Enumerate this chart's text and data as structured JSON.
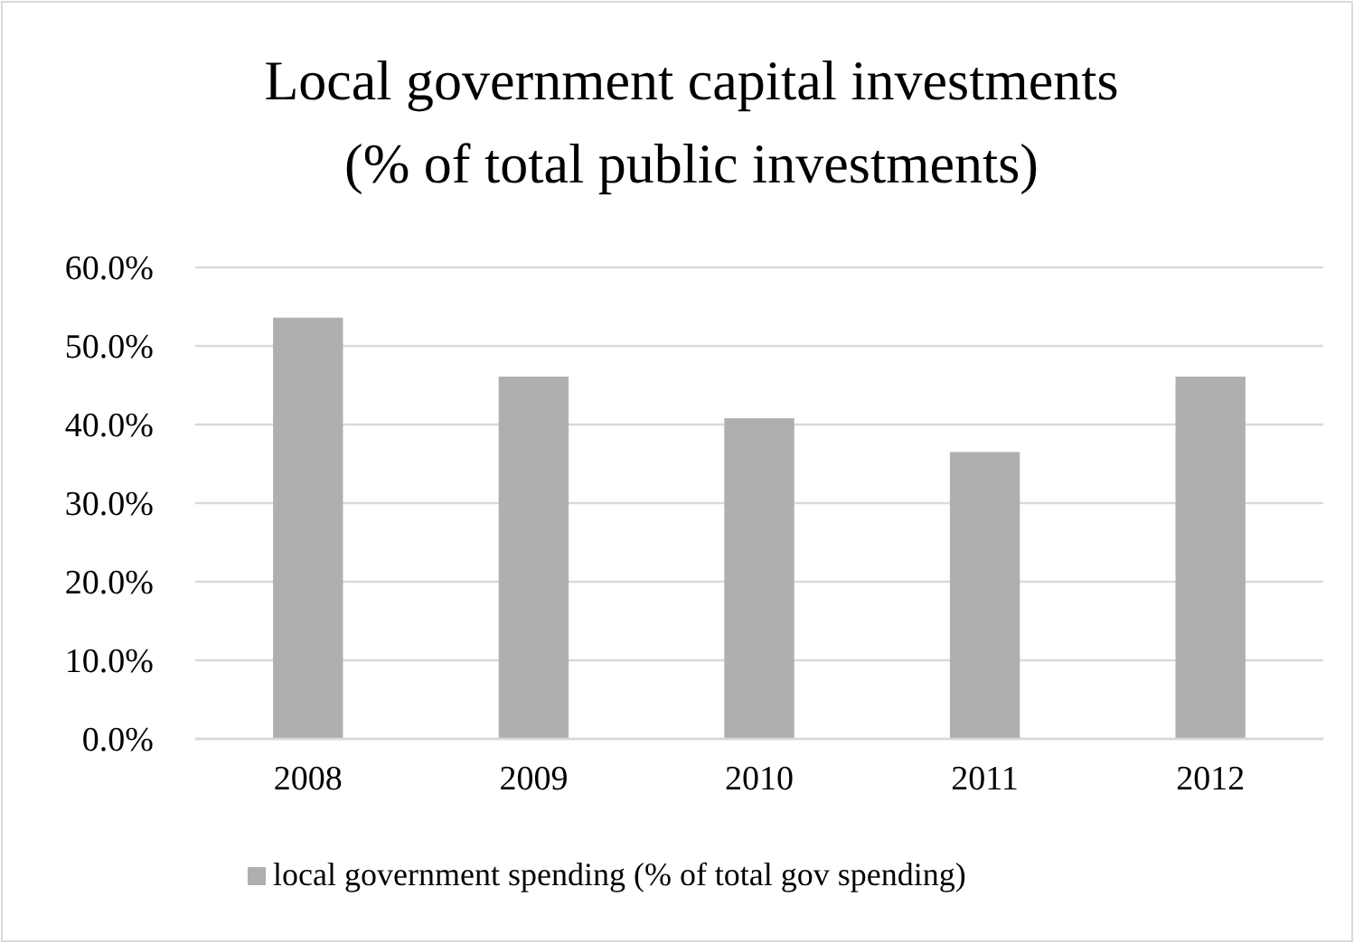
{
  "chart_data": {
    "type": "bar",
    "title": "Local government capital investments\n(% of total public investments)",
    "categories": [
      "2008",
      "2009",
      "2010",
      "2011",
      "2012"
    ],
    "series": [
      {
        "name": "local government spending (% of total gov spending)",
        "color": "#afafaf",
        "values": [
          53.6,
          46.1,
          40.8,
          36.5,
          46.1
        ]
      }
    ],
    "ylim": [
      0,
      60
    ],
    "yticks": [
      {
        "value": 0,
        "label": "0.0%"
      },
      {
        "value": 10,
        "label": "10.0%"
      },
      {
        "value": 20,
        "label": "20.0%"
      },
      {
        "value": 30,
        "label": "30.0%"
      },
      {
        "value": 40,
        "label": "40.0%"
      },
      {
        "value": 50,
        "label": "50.0%"
      },
      {
        "value": 60,
        "label": "60.0%"
      }
    ],
    "grid": "y",
    "legend": "bottom"
  }
}
